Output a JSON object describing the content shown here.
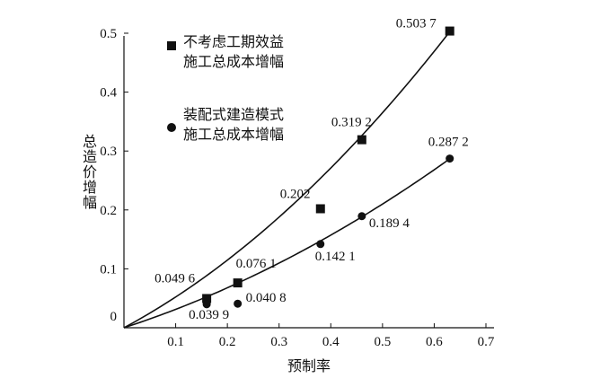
{
  "chart_data": {
    "type": "scatter",
    "xlabel": "预制率",
    "ylabel": "总造价增幅",
    "xlim": [
      0,
      0.7
    ],
    "ylim": [
      0,
      0.5
    ],
    "x_ticks": [
      "0.1",
      "0.2",
      "0.3",
      "0.4",
      "0.5",
      "0.6",
      "0.7"
    ],
    "y_ticks": [
      "0",
      "0.1",
      "0.2",
      "0.3",
      "0.4",
      "0.5"
    ],
    "grid": false,
    "legend_position": "top-left",
    "series": [
      {
        "name": "不考虑工期效益施工总成本增幅",
        "legend_lines": [
          "不考虑工期效益",
          "施工总成本增幅"
        ],
        "marker": "square",
        "x": [
          0.16,
          0.22,
          0.38,
          0.46,
          0.63
        ],
        "y": [
          0.0496,
          0.0761,
          0.202,
          0.3192,
          0.5037
        ],
        "labels": [
          "0.049 6",
          "0.076 1",
          "0.202",
          "0.319 2",
          "0.503 7"
        ],
        "trend_coeffs": [
          0,
          0.47,
          0.52
        ]
      },
      {
        "name": "装配式建造模式施工总成本增幅",
        "legend_lines": [
          "装配式建造模式",
          "施工总成本增幅"
        ],
        "marker": "circle",
        "x": [
          0.16,
          0.22,
          0.38,
          0.46,
          0.63
        ],
        "y": [
          0.0399,
          0.0408,
          0.1421,
          0.1894,
          0.2872
        ],
        "labels": [
          "0.039 9",
          "0.040 8",
          "0.142 1",
          "0.189 4",
          "0.287 2"
        ],
        "trend_coeffs": [
          0,
          0.285,
          0.27
        ]
      }
    ]
  }
}
